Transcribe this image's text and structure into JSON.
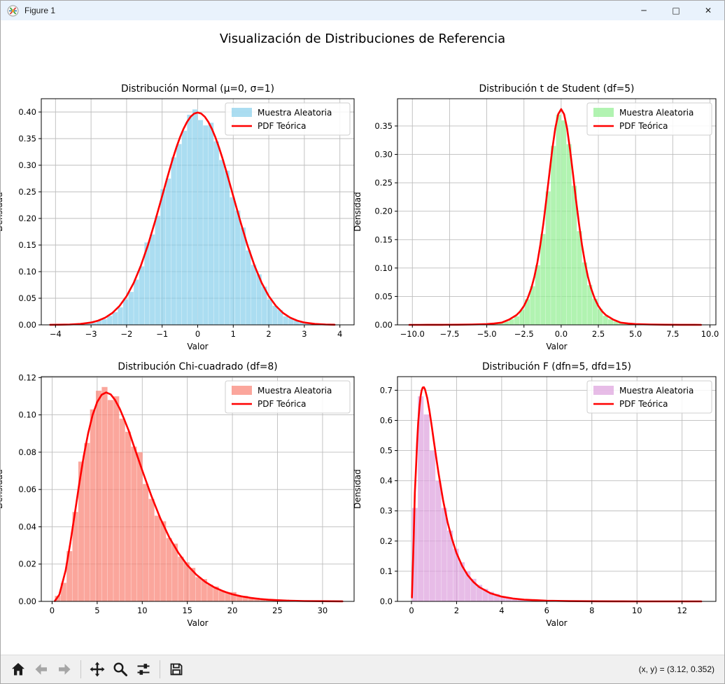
{
  "window": {
    "title": "Figure 1",
    "controls": [
      {
        "name": "minimize",
        "glyph": "─"
      },
      {
        "name": "maximize",
        "glyph": "□"
      },
      {
        "name": "close",
        "glyph": "✕"
      }
    ]
  },
  "figure": {
    "suptitle": "Visualización de Distribuciones de Referencia"
  },
  "toolbar": {
    "buttons": [
      {
        "name": "home",
        "icon": "home-icon",
        "disabled": false
      },
      {
        "name": "back",
        "icon": "back-icon",
        "disabled": true
      },
      {
        "name": "forward",
        "icon": "forward-icon",
        "disabled": true
      },
      {
        "name": "pan",
        "icon": "pan-icon",
        "disabled": false
      },
      {
        "name": "zoom",
        "icon": "zoom-icon",
        "disabled": false
      },
      {
        "name": "configure-subplots",
        "icon": "subplots-icon",
        "disabled": false
      },
      {
        "name": "save",
        "icon": "save-icon",
        "disabled": false
      }
    ],
    "status": "(x, y) = (3.12, 0.352)"
  },
  "colors": {
    "titlebar_bg": "#e9f2fc",
    "toolbar_bg": "#f0f0f0",
    "pdf_line": "#ff0000",
    "grid": "#bdbdbd",
    "hist_normal": "#87CEEB",
    "hist_t": "#90EE90",
    "hist_chi2": "#FA8072",
    "hist_f": "#DDA0DD"
  },
  "chart_data": [
    {
      "id": "normal",
      "type": "histogram+line",
      "title": "Distribución Normal (μ=0, σ=1)",
      "xlabel": "Valor",
      "ylabel": "Densidad",
      "xlim": [
        -4.4,
        4.4
      ],
      "ylim": [
        0,
        0.425
      ],
      "grid": true,
      "xticks": {
        "values": [
          -4,
          -3,
          -2,
          -1,
          0,
          1,
          2,
          3,
          4
        ],
        "labels": [
          "−4",
          "−3",
          "−2",
          "−1",
          "0",
          "1",
          "2",
          "3",
          "4"
        ]
      },
      "yticks": {
        "values": [
          0,
          0.05,
          0.1,
          0.15,
          0.2,
          0.25,
          0.3,
          0.35,
          0.4
        ],
        "labels": [
          "0.00",
          "0.05",
          "0.10",
          "0.15",
          "0.20",
          "0.25",
          "0.30",
          "0.35",
          "0.40"
        ]
      },
      "legend": {
        "position": "upper right",
        "entries": [
          {
            "label": "Muestra Aleatoria",
            "type": "patch",
            "color": "#87CEEB"
          },
          {
            "label": "PDF Teórica",
            "type": "line",
            "color": "#ff0000"
          }
        ]
      },
      "hist": {
        "color": "#87CEEB",
        "alpha": 0.7,
        "bin_start": -3.45,
        "bin_width": 0.15,
        "densities": [
          0.001,
          0.002,
          0.003,
          0.004,
          0.008,
          0.011,
          0.017,
          0.024,
          0.033,
          0.048,
          0.062,
          0.085,
          0.11,
          0.155,
          0.17,
          0.205,
          0.255,
          0.275,
          0.315,
          0.34,
          0.365,
          0.395,
          0.405,
          0.385,
          0.375,
          0.38,
          0.345,
          0.31,
          0.29,
          0.24,
          0.215,
          0.183,
          0.14,
          0.113,
          0.095,
          0.072,
          0.048,
          0.036,
          0.028,
          0.016,
          0.012,
          0.008,
          0.005,
          0.003,
          0.002,
          0.001,
          0.001
        ]
      },
      "pdf": {
        "color": "#ff0000",
        "x": [
          -4.15,
          -3.9,
          -3.6,
          -3.3,
          -3.0,
          -2.8,
          -2.6,
          -2.4,
          -2.2,
          -2.0,
          -1.8,
          -1.6,
          -1.4,
          -1.2,
          -1.0,
          -0.9,
          -0.8,
          -0.7,
          -0.6,
          -0.5,
          -0.4,
          -0.3,
          -0.2,
          -0.1,
          0,
          0.1,
          0.2,
          0.3,
          0.4,
          0.5,
          0.6,
          0.7,
          0.8,
          0.9,
          1.0,
          1.2,
          1.4,
          1.6,
          1.8,
          2.0,
          2.2,
          2.4,
          2.6,
          2.8,
          3.0,
          3.3,
          3.6,
          3.85
        ],
        "y": [
          0.0001,
          0.0002,
          0.0006,
          0.0017,
          0.0044,
          0.0079,
          0.0136,
          0.0224,
          0.0355,
          0.054,
          0.079,
          0.1109,
          0.1497,
          0.1942,
          0.242,
          0.2661,
          0.2897,
          0.3123,
          0.3332,
          0.3521,
          0.3683,
          0.3814,
          0.391,
          0.397,
          0.3989,
          0.397,
          0.391,
          0.3814,
          0.3683,
          0.3521,
          0.3332,
          0.3123,
          0.2897,
          0.2661,
          0.242,
          0.1942,
          0.1497,
          0.1109,
          0.079,
          0.054,
          0.0355,
          0.0224,
          0.0136,
          0.0079,
          0.0044,
          0.0017,
          0.0006,
          0.0002
        ]
      }
    },
    {
      "id": "t-student",
      "type": "histogram+line",
      "title": "Distribución t de Student (df=5)",
      "xlabel": "Valor",
      "ylabel": "Densidad",
      "xlim": [
        -11,
        10.4
      ],
      "ylim": [
        0,
        0.398
      ],
      "grid": true,
      "xticks": {
        "values": [
          -10,
          -7.5,
          -5,
          -2.5,
          0,
          2.5,
          5,
          7.5,
          10
        ],
        "labels": [
          "−10.0",
          "−7.5",
          "−5.0",
          "−2.5",
          "0.0",
          "2.5",
          "5.0",
          "7.5",
          "10.0"
        ]
      },
      "yticks": {
        "values": [
          0,
          0.05,
          0.1,
          0.15,
          0.2,
          0.25,
          0.3,
          0.35
        ],
        "labels": [
          "0.00",
          "0.05",
          "0.10",
          "0.15",
          "0.20",
          "0.25",
          "0.30",
          "0.35"
        ]
      },
      "legend": {
        "position": "upper right",
        "entries": [
          {
            "label": "Muestra Aleatoria",
            "type": "patch",
            "color": "#90EE90"
          },
          {
            "label": "PDF Teórica",
            "type": "line",
            "color": "#ff0000"
          }
        ]
      },
      "hist": {
        "color": "#90EE90",
        "alpha": 0.7,
        "bin_start": -5.95,
        "bin_width": 0.35,
        "densities": [
          0.001,
          0.001,
          0.001,
          0.002,
          0.002,
          0.004,
          0.006,
          0.01,
          0.015,
          0.027,
          0.045,
          0.068,
          0.105,
          0.16,
          0.235,
          0.315,
          0.37,
          0.36,
          0.318,
          0.245,
          0.165,
          0.11,
          0.07,
          0.046,
          0.028,
          0.016,
          0.01,
          0.006,
          0.004,
          0.002,
          0.002,
          0.001,
          0.001,
          0.001
        ]
      },
      "pdf": {
        "color": "#ff0000",
        "x": [
          -10.2,
          -9.5,
          -9,
          -8,
          -7,
          -6,
          -5,
          -4.5,
          -4,
          -3.5,
          -3,
          -2.75,
          -2.5,
          -2.25,
          -2,
          -1.8,
          -1.6,
          -1.4,
          -1.2,
          -1.0,
          -0.8,
          -0.6,
          -0.4,
          -0.2,
          0,
          0.2,
          0.4,
          0.6,
          0.8,
          1.0,
          1.2,
          1.4,
          1.6,
          1.8,
          2,
          2.25,
          2.5,
          2.75,
          3,
          3.5,
          4,
          4.5,
          5,
          6,
          7,
          8,
          9,
          9.4
        ],
        "y": [
          4e-05,
          5e-05,
          7e-05,
          0.00013,
          0.00027,
          0.00058,
          0.0014,
          0.0023,
          0.004,
          0.0092,
          0.0173,
          0.0239,
          0.0333,
          0.0466,
          0.0651,
          0.0848,
          0.1098,
          0.1408,
          0.1777,
          0.2197,
          0.2645,
          0.3081,
          0.3454,
          0.3706,
          0.3796,
          0.3706,
          0.3454,
          0.3081,
          0.2645,
          0.2197,
          0.1777,
          0.1408,
          0.1098,
          0.0848,
          0.0651,
          0.0466,
          0.0333,
          0.0239,
          0.0173,
          0.0092,
          0.004,
          0.0023,
          0.0014,
          0.00058,
          0.00027,
          0.00013,
          7e-05,
          5e-05
        ]
      }
    },
    {
      "id": "chi-cuadrado",
      "type": "histogram+line",
      "title": "Distribución Chi-cuadrado (df=8)",
      "xlabel": "Valor",
      "ylabel": "Densidad",
      "xlim": [
        -1.2,
        33.5
      ],
      "ylim": [
        0,
        0.1205
      ],
      "grid": true,
      "xticks": {
        "values": [
          0,
          5,
          10,
          15,
          20,
          25,
          30
        ],
        "labels": [
          "0",
          "5",
          "10",
          "15",
          "20",
          "25",
          "30"
        ]
      },
      "yticks": {
        "values": [
          0,
          0.02,
          0.04,
          0.06,
          0.08,
          0.1,
          0.12
        ],
        "labels": [
          "0.00",
          "0.02",
          "0.04",
          "0.06",
          "0.08",
          "0.10",
          "0.12"
        ]
      },
      "legend": {
        "position": "upper right",
        "entries": [
          {
            "label": "Muestra Aleatoria",
            "type": "patch",
            "color": "#FA8072"
          },
          {
            "label": "PDF Teórica",
            "type": "line",
            "color": "#ff0000"
          }
        ]
      },
      "hist": {
        "color": "#FA8072",
        "alpha": 0.7,
        "bin_start": 0.3,
        "bin_width": 0.65,
        "densities": [
          0.003,
          0.01,
          0.027,
          0.048,
          0.075,
          0.085,
          0.103,
          0.113,
          0.115,
          0.108,
          0.11,
          0.098,
          0.091,
          0.083,
          0.08,
          0.063,
          0.055,
          0.046,
          0.043,
          0.034,
          0.031,
          0.024,
          0.021,
          0.018,
          0.013,
          0.012,
          0.009,
          0.008,
          0.006,
          0.005,
          0.005,
          0.003,
          0.003,
          0.002,
          0.002,
          0.001,
          0.001,
          0.001,
          0.001,
          0.001,
          0.0005,
          0.0005,
          0,
          0.0005,
          0,
          0.0005,
          0,
          0,
          0.0005
        ]
      },
      "pdf": {
        "color": "#ff0000",
        "x": [
          0.3,
          0.8,
          1.5,
          2,
          2.5,
          3,
          3.5,
          4,
          4.5,
          5,
          5.5,
          6,
          6.5,
          7,
          7.5,
          8,
          8.5,
          9,
          9.5,
          10,
          11,
          12,
          13,
          14,
          15,
          16,
          17,
          18,
          19,
          20,
          21,
          22,
          23,
          24,
          26,
          28,
          30,
          32.2
        ],
        "y": [
          0.0002,
          0.0036,
          0.0166,
          0.0307,
          0.0466,
          0.0627,
          0.0776,
          0.0902,
          0.1,
          0.1069,
          0.1108,
          0.112,
          0.111,
          0.1079,
          0.1033,
          0.0976,
          0.0915,
          0.0843,
          0.0773,
          0.0702,
          0.0567,
          0.0446,
          0.0343,
          0.0261,
          0.0194,
          0.0143,
          0.0104,
          0.0075,
          0.0054,
          0.0038,
          0.0027,
          0.0019,
          0.0013,
          0.0009,
          0.0004,
          0.0002,
          0.0001,
          5e-05
        ]
      }
    },
    {
      "id": "f",
      "type": "histogram+line",
      "title": "Distribución F (dfn=5, dfd=15)",
      "xlabel": "Valor",
      "ylabel": "Densidad",
      "xlim": [
        -0.62,
        13.5
      ],
      "ylim": [
        0,
        0.745
      ],
      "grid": true,
      "xticks": {
        "values": [
          0,
          2,
          4,
          6,
          8,
          10,
          12
        ],
        "labels": [
          "0",
          "2",
          "4",
          "6",
          "8",
          "10",
          "12"
        ]
      },
      "yticks": {
        "values": [
          0,
          0.1,
          0.2,
          0.3,
          0.4,
          0.5,
          0.6,
          0.7
        ],
        "labels": [
          "0.0",
          "0.1",
          "0.2",
          "0.3",
          "0.4",
          "0.5",
          "0.6",
          "0.7"
        ]
      },
      "legend": {
        "position": "upper right",
        "entries": [
          {
            "label": "Muestra Aleatoria",
            "type": "patch",
            "color": "#DDA0DD"
          },
          {
            "label": "PDF Teórica",
            "type": "line",
            "color": "#ff0000"
          }
        ]
      },
      "hist": {
        "color": "#DDA0DD",
        "alpha": 0.7,
        "bin_start": 0.02,
        "bin_width": 0.26,
        "densities": [
          0.31,
          0.68,
          0.62,
          0.5,
          0.4,
          0.31,
          0.235,
          0.175,
          0.13,
          0.1,
          0.075,
          0.055,
          0.042,
          0.032,
          0.025,
          0.018,
          0.014,
          0.01,
          0.008,
          0.006,
          0.005,
          0.004,
          0.003,
          0.002,
          0.002,
          0.001,
          0.001,
          0.001,
          0.001,
          0.0005,
          0.0005,
          0.0005,
          0,
          0.0005,
          0,
          0.0005,
          0,
          0,
          0.0005,
          0,
          0,
          0.0005,
          0,
          0,
          0,
          0.0005,
          0,
          0,
          0.0005
        ]
      },
      "pdf": {
        "color": "#ff0000",
        "x": [
          0.02,
          0.05,
          0.1,
          0.15,
          0.2,
          0.25,
          0.3,
          0.35,
          0.4,
          0.45,
          0.5,
          0.55,
          0.6,
          0.7,
          0.8,
          0.9,
          1.0,
          1.1,
          1.2,
          1.4,
          1.6,
          1.8,
          2.0,
          2.25,
          2.5,
          2.75,
          3.0,
          3.5,
          4.0,
          4.5,
          5.0,
          6.0,
          7.0,
          8.0,
          9.0,
          10.0,
          11.0,
          12.0,
          12.85
        ],
        "y": [
          0.013,
          0.089,
          0.213,
          0.36,
          0.439,
          0.525,
          0.593,
          0.642,
          0.678,
          0.699,
          0.709,
          0.71,
          0.703,
          0.674,
          0.63,
          0.58,
          0.527,
          0.476,
          0.426,
          0.336,
          0.263,
          0.206,
          0.16,
          0.117,
          0.086,
          0.064,
          0.0475,
          0.0269,
          0.0157,
          0.0094,
          0.0058,
          0.0023,
          0.001,
          0.0005,
          0.0002,
          0.0001,
          7e-05,
          4e-05,
          3e-05
        ]
      }
    }
  ]
}
